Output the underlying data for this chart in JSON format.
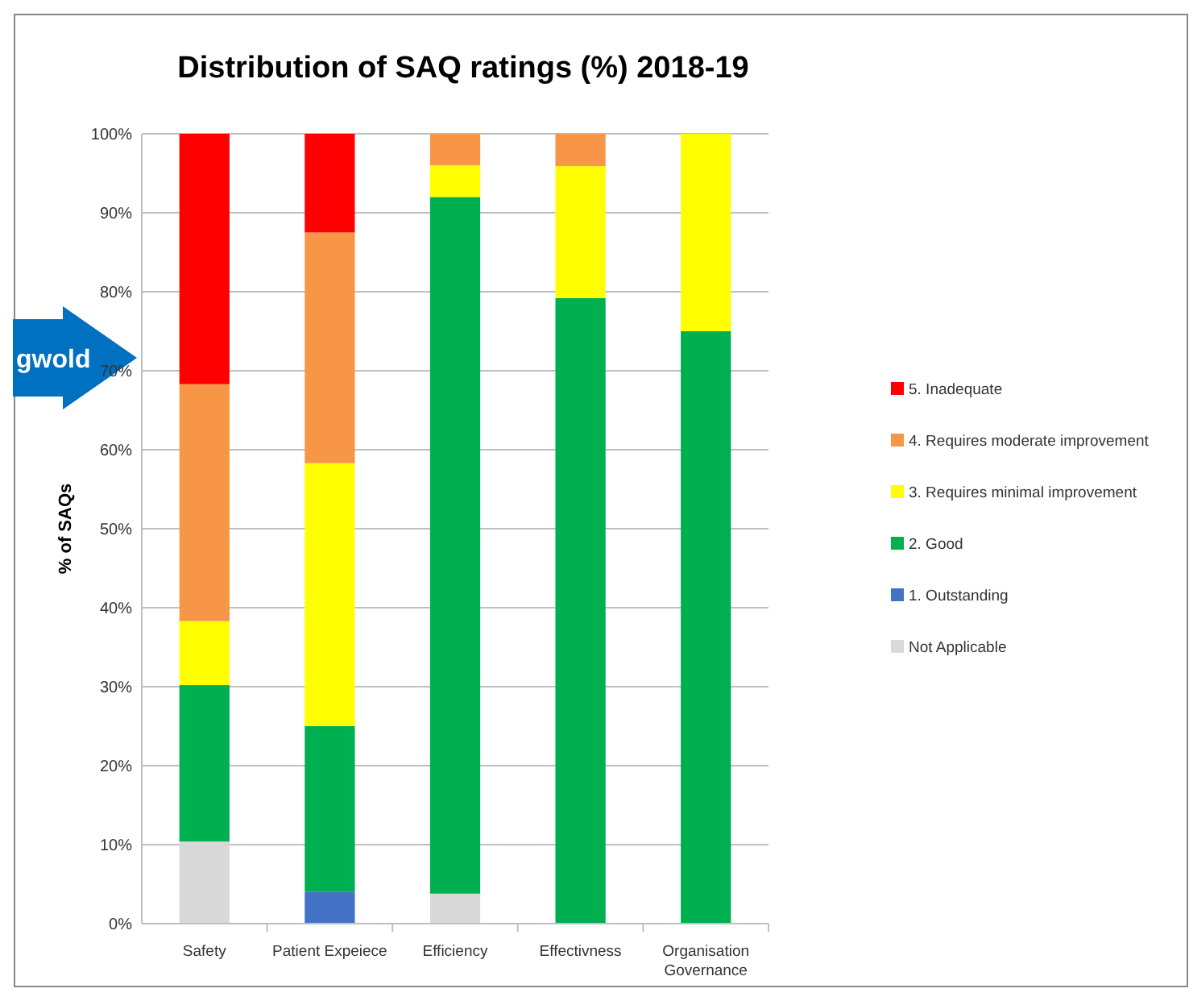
{
  "chart_data": {
    "type": "bar",
    "stacked": true,
    "title": "Distribution of SAQ ratings (%) 2018-19",
    "ylabel": "% of SAQs",
    "categories": [
      "Safety",
      "Patient Expeiece",
      "Efficiency",
      "Effectivness",
      "Organisation Governance"
    ],
    "series": [
      {
        "name": "Not Applicable",
        "color": "#d9d9d9",
        "values": [
          10.4,
          0,
          3.8,
          0,
          0
        ]
      },
      {
        "name": "1. Outstanding",
        "color": "#4472c4",
        "values": [
          0,
          4,
          0,
          0,
          0
        ]
      },
      {
        "name": "2. Good",
        "color": "#00b050",
        "values": [
          19.8,
          21,
          88.2,
          79.2,
          75
        ]
      },
      {
        "name": "3. Requires minimal improvement",
        "color": "#ffff00",
        "values": [
          8.1,
          33.3,
          4,
          16.7,
          25
        ]
      },
      {
        "name": "4. Requires moderate improvement",
        "color": "#f79646",
        "values": [
          30,
          29.2,
          4,
          4.1,
          0
        ]
      },
      {
        "name": "5. Inadequate",
        "color": "#ff0000",
        "values": [
          31.7,
          12.5,
          0,
          0,
          0
        ]
      }
    ],
    "ylim": [
      0,
      100
    ],
    "yticks": [
      {
        "value": 0,
        "label": "0%"
      },
      {
        "value": 10,
        "label": "10%"
      },
      {
        "value": 20,
        "label": "20%"
      },
      {
        "value": 30,
        "label": "30%"
      },
      {
        "value": 40,
        "label": "40%"
      },
      {
        "value": 50,
        "label": "50%"
      },
      {
        "value": 60,
        "label": "60%"
      },
      {
        "value": 70,
        "label": "70%"
      },
      {
        "value": 80,
        "label": "80%"
      },
      {
        "value": 90,
        "label": "90%"
      },
      {
        "value": 100,
        "label": "100%"
      }
    ],
    "grid": "y",
    "legend": "right",
    "annotations": [
      "gwold"
    ]
  }
}
